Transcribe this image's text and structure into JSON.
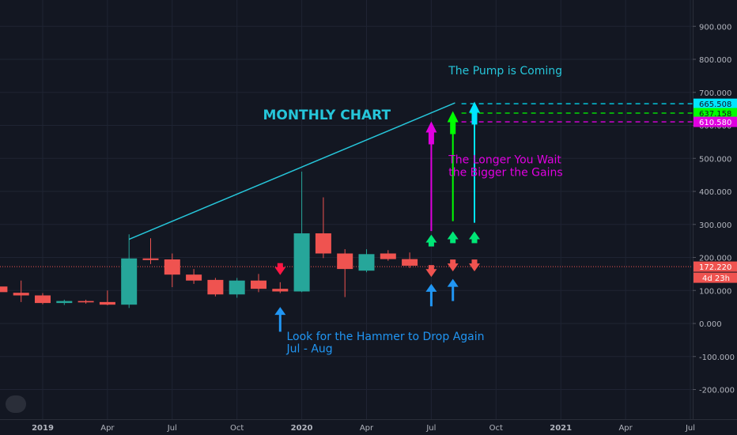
{
  "chart_data": {
    "type": "candlestick",
    "title": "",
    "interval": "monthly",
    "y_axis": {
      "ticks": [
        900,
        800,
        700,
        600,
        500,
        400,
        300,
        200,
        100,
        0,
        -100,
        -200
      ],
      "tick_labels": [
        "900.000",
        "800.000",
        "700.000",
        "600.000",
        "500.000",
        "400.000",
        "300.000",
        "200.000",
        "100.000",
        "0.000",
        "-100.000",
        "-200.000"
      ],
      "ylim": [
        -260,
        990
      ]
    },
    "x_axis": {
      "ticks": [
        {
          "idx": 0,
          "label": "2019",
          "bold": true
        },
        {
          "idx": 3,
          "label": "Apr",
          "bold": false
        },
        {
          "idx": 6,
          "label": "Jul",
          "bold": false
        },
        {
          "idx": 9,
          "label": "Oct",
          "bold": false
        },
        {
          "idx": 12,
          "label": "2020",
          "bold": true
        },
        {
          "idx": 15,
          "label": "Apr",
          "bold": false
        },
        {
          "idx": 18,
          "label": "Jul",
          "bold": false
        },
        {
          "idx": 21,
          "label": "Oct",
          "bold": false
        },
        {
          "idx": 24,
          "label": "2021",
          "bold": true
        },
        {
          "idx": 27,
          "label": "Apr",
          "bold": false
        },
        {
          "idx": 30,
          "label": "Jul",
          "bold": false
        }
      ]
    },
    "candles": [
      {
        "idx": -2,
        "open": 112,
        "high": 125,
        "low": 92,
        "close": 95
      },
      {
        "idx": -1,
        "open": 93,
        "high": 130,
        "low": 65,
        "close": 85
      },
      {
        "idx": 0,
        "open": 85,
        "high": 92,
        "low": 58,
        "close": 62
      },
      {
        "idx": 1,
        "open": 62,
        "high": 72,
        "low": 56,
        "close": 68
      },
      {
        "idx": 2,
        "open": 68,
        "high": 72,
        "low": 60,
        "close": 64
      },
      {
        "idx": 3,
        "open": 65,
        "high": 100,
        "low": 55,
        "close": 57
      },
      {
        "idx": 4,
        "open": 57,
        "high": 270,
        "low": 47,
        "close": 197
      },
      {
        "idx": 5,
        "open": 197,
        "high": 258,
        "low": 180,
        "close": 192
      },
      {
        "idx": 6,
        "open": 194,
        "high": 212,
        "low": 110,
        "close": 148
      },
      {
        "idx": 7,
        "open": 148,
        "high": 165,
        "low": 120,
        "close": 130
      },
      {
        "idx": 8,
        "open": 132,
        "high": 138,
        "low": 82,
        "close": 88
      },
      {
        "idx": 9,
        "open": 88,
        "high": 138,
        "low": 78,
        "close": 130
      },
      {
        "idx": 10,
        "open": 130,
        "high": 150,
        "low": 95,
        "close": 105
      },
      {
        "idx": 11,
        "open": 105,
        "high": 125,
        "low": 92,
        "close": 97
      },
      {
        "idx": 12,
        "open": 97,
        "high": 460,
        "low": 95,
        "close": 273
      },
      {
        "idx": 13,
        "open": 273,
        "high": 382,
        "low": 198,
        "close": 212
      },
      {
        "idx": 14,
        "open": 212,
        "high": 225,
        "low": 80,
        "close": 165
      },
      {
        "idx": 15,
        "open": 160,
        "high": 225,
        "low": 155,
        "close": 210
      },
      {
        "idx": 16,
        "open": 212,
        "high": 222,
        "low": 190,
        "close": 195
      },
      {
        "idx": 17,
        "open": 195,
        "high": 215,
        "low": 168,
        "close": 175
      }
    ],
    "current_price": 172.22,
    "price_labels": [
      {
        "value": 665.508,
        "text": "665.508",
        "color": "#00e5ff"
      },
      {
        "value": 637.158,
        "text": "637.158",
        "color": "#00ff00"
      },
      {
        "value": 610.58,
        "text": "610.580",
        "color": "#e000e0"
      },
      {
        "value": 172.22,
        "text": "172.220",
        "color": "#ef5350"
      }
    ],
    "countdown_label": "4d 23h",
    "trend_line": {
      "from": {
        "idx": 4,
        "value": 255
      },
      "to": {
        "idx": 19.1,
        "value": 668
      },
      "color": "#26c6da"
    },
    "horizontal_levels": [
      {
        "value": 665.508,
        "color": "#00e5ff",
        "from_idx": 19.4
      },
      {
        "value": 637.158,
        "color": "#00ff00",
        "from_idx": 19.4
      },
      {
        "value": 610.58,
        "color": "#e000e0",
        "from_idx": 19.4
      }
    ],
    "annotations": [
      {
        "text": "MONTHLY CHART",
        "idx": 10.2,
        "value": 618,
        "color": "#26c6da",
        "size": 17,
        "bold": true
      },
      {
        "text": "The Pump is Coming",
        "idx": 18.8,
        "value": 755,
        "color": "#26c6da",
        "size": 14,
        "bold": false
      },
      {
        "text": "The Longer You Wait",
        "idx": 18.8,
        "value": 485,
        "color": "#e000e0",
        "size": 14,
        "bold": false
      },
      {
        "text": "the Bigger the Gains",
        "idx": 18.8,
        "value": 447,
        "color": "#e000e0",
        "size": 14,
        "bold": false
      },
      {
        "text": "Look for the Hammer to Drop Again",
        "idx": 11.3,
        "value": -50,
        "color": "#2196f3",
        "size": 14,
        "bold": false
      },
      {
        "text": "Jul - Aug",
        "idx": 11.3,
        "value": -87,
        "color": "#2196f3",
        "size": 14,
        "bold": false
      }
    ],
    "long_arrows": [
      {
        "idx": 18,
        "from": 280,
        "to": 612,
        "color": "#e000e0"
      },
      {
        "idx": 19,
        "from": 310,
        "to": 643,
        "color": "#00ff00"
      },
      {
        "idx": 20,
        "from": 305,
        "to": 672,
        "color": "#00e5ff"
      }
    ],
    "small_arrows": [
      {
        "idx": 11,
        "value": 166,
        "dir": "down",
        "color": "#ff1744",
        "h": 38
      },
      {
        "idx": 18,
        "value": 250,
        "dir": "up",
        "color": "#00e676",
        "h": 38
      },
      {
        "idx": 19,
        "value": 260,
        "dir": "up",
        "color": "#00e676",
        "h": 38
      },
      {
        "idx": 20,
        "value": 260,
        "dir": "up",
        "color": "#00e676",
        "h": 38
      },
      {
        "idx": 18,
        "value": 160,
        "dir": "down",
        "color": "#ef5350",
        "h": 38
      },
      {
        "idx": 19,
        "value": 177,
        "dir": "down",
        "color": "#ef5350",
        "h": 38
      },
      {
        "idx": 20,
        "value": 177,
        "dir": "down",
        "color": "#ef5350",
        "h": 38
      }
    ],
    "blue_arrows": [
      {
        "idx": 11,
        "from": -25,
        "to": 50
      },
      {
        "idx": 18,
        "from": 52,
        "to": 120
      },
      {
        "idx": 19,
        "from": 68,
        "to": 135
      }
    ],
    "colors": {
      "background": "#131722",
      "grid": "#1f2433",
      "axis_text": "#b2b5be",
      "bull": "#26a69a",
      "bear": "#ef5350",
      "blue_arrow": "#2196f3"
    }
  }
}
